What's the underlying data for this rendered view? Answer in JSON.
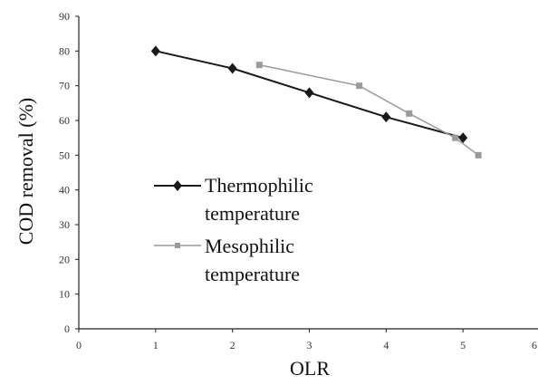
{
  "chart_data": {
    "type": "line",
    "xlabel": "OLR",
    "ylabel": "COD removal (%)",
    "xlim": [
      0,
      6
    ],
    "ylim": [
      0,
      90
    ],
    "x_ticks": [
      "0",
      "1",
      "2",
      "3",
      "4",
      "5",
      "6"
    ],
    "y_ticks": [
      "0",
      "10",
      "20",
      "30",
      "40",
      "50",
      "60",
      "70",
      "80",
      "90"
    ],
    "grid": false,
    "legend_position": "center-left",
    "series": [
      {
        "name_lines": [
          "Thermophilic",
          "temperature"
        ],
        "color": "#1a1a1a",
        "marker": "diamond",
        "x": [
          1,
          2,
          3,
          4,
          5
        ],
        "y": [
          80,
          75,
          68,
          61,
          55
        ]
      },
      {
        "name_lines": [
          "Mesophilic",
          "temperature"
        ],
        "color": "#9a9a9a",
        "marker": "square",
        "x": [
          2.35,
          3.65,
          4.3,
          4.9,
          5.2
        ],
        "y": [
          76,
          70,
          62,
          55,
          50
        ]
      }
    ]
  }
}
